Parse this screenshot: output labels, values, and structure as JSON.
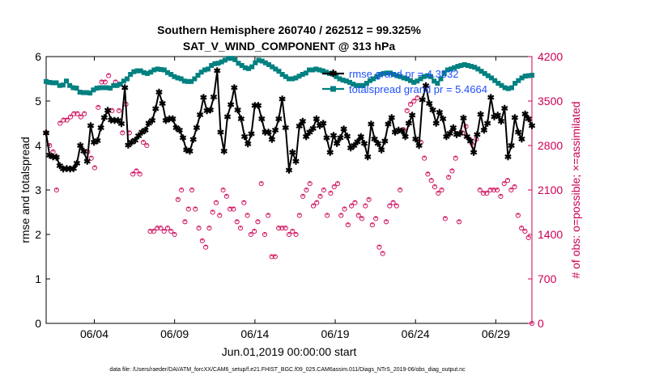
{
  "chart_data": {
    "type": "line",
    "title_line1": "Southern Hemisphere 260740 / 262512 = 99.325%",
    "title_line2": "SAT_V_WIND_COMPONENT @ 313 hPa",
    "xlabel": "Jun.01,2019 00:00:00 start",
    "ylabel_left": "rmse and totalspread",
    "ylabel_right": "# of obs: o=possible; ×=assimilated",
    "footer": "data file: /Users/raeder/DAI/ATM_forcXX/CAM6_setup/f.e21.FHIST_BGC.f09_025.CAM6assim.011/Diags_NTrS_2019-06/obs_diag_output.nc",
    "x_range_days": [
      0.5,
      30.75
    ],
    "ylim_left": [
      0,
      6
    ],
    "ylim_right": [
      0,
      4200
    ],
    "x_ticks": [
      {
        "day": 3.5,
        "label": "06/04"
      },
      {
        "day": 8.5,
        "label": "06/09"
      },
      {
        "day": 13.5,
        "label": "06/14"
      },
      {
        "day": 18.5,
        "label": "06/19"
      },
      {
        "day": 23.5,
        "label": "06/24"
      },
      {
        "day": 28.5,
        "label": "06/29"
      }
    ],
    "y_ticks_left": [
      "0",
      "1",
      "2",
      "3",
      "4",
      "5",
      "6"
    ],
    "y_ticks_right": [
      "0",
      "700",
      "1400",
      "2100",
      "2800",
      "3500",
      "4200"
    ],
    "legend": [
      "rmse grand pr = 4.3532",
      "totalspread grand pr = 5.4664"
    ],
    "colors": {
      "rmse": "#000000",
      "totalspread": "#008080",
      "obs": "#cc0055",
      "legend_text": "#1e50ff",
      "right_axis": "#cc0055"
    },
    "series": [
      {
        "key": "rmse",
        "axis": "left",
        "values": [
          4.28,
          3.78,
          3.75,
          3.74,
          3.55,
          3.47,
          3.48,
          3.47,
          3.48,
          3.6,
          4.0,
          3.87,
          3.65,
          4.45,
          4.07,
          4.11,
          4.4,
          4.63,
          4.79,
          4.57,
          4.56,
          4.56,
          4.49,
          5.3,
          4.01,
          4.07,
          4.12,
          4.22,
          4.3,
          4.35,
          4.5,
          4.56,
          4.83,
          5.2,
          4.95,
          4.56,
          4.6,
          4.6,
          4.4,
          4.35,
          4.17,
          3.9,
          3.87,
          4.14,
          4.4,
          4.69,
          5.08,
          4.78,
          4.8,
          5.09,
          5.68,
          4.3,
          3.87,
          4.65,
          4.92,
          5.3,
          4.8,
          4.6,
          4.2,
          4.04,
          4.26,
          4.9,
          4.9,
          4.6,
          4.3,
          4.3,
          4.14,
          4.35,
          4.6,
          5.05,
          4.4,
          3.45,
          3.85,
          3.65,
          4.44,
          4.55,
          4.2,
          4.3,
          4.38,
          4.6,
          4.45,
          4.5,
          4.17,
          3.85,
          4.23,
          4.05,
          4.17,
          4.37,
          4.21,
          3.95,
          4.0,
          4.08,
          4.2,
          4.05,
          3.75,
          4.48,
          4.15,
          4.05,
          3.9,
          4.1,
          4.48,
          4.63,
          4.3,
          4.35,
          4.33,
          4.2,
          4.5,
          4.68,
          4.15,
          4.0,
          5.03,
          5.35,
          4.95,
          4.8,
          4.5,
          4.75,
          4.6,
          4.2,
          4.27,
          4.4,
          4.25,
          4.27,
          4.62,
          4.2,
          4.1,
          3.85,
          4.25,
          4.7,
          4.35,
          4.5,
          5.08,
          4.65,
          4.68,
          4.55,
          4.84,
          3.75,
          4.0,
          4.63,
          4.3,
          4.15,
          4.71,
          4.6,
          4.45
        ]
      },
      {
        "key": "totalspread",
        "axis": "left",
        "values": [
          5.44,
          5.42,
          5.41,
          5.41,
          5.35,
          5.36,
          5.45,
          5.35,
          5.3,
          5.29,
          5.2,
          5.19,
          5.19,
          5.18,
          5.25,
          5.29,
          5.3,
          5.3,
          5.3,
          5.29,
          5.35,
          5.35,
          5.38,
          5.45,
          5.5,
          5.6,
          5.66,
          5.68,
          5.68,
          5.64,
          5.62,
          5.65,
          5.7,
          5.72,
          5.71,
          5.7,
          5.64,
          5.6,
          5.55,
          5.52,
          5.5,
          5.45,
          5.44,
          5.44,
          5.5,
          5.58,
          5.65,
          5.7,
          5.72,
          5.8,
          5.84,
          5.85,
          5.88,
          5.92,
          5.96,
          5.96,
          5.93,
          5.85,
          5.8,
          5.75,
          5.73,
          5.77,
          5.86,
          5.92,
          5.9,
          5.86,
          5.82,
          5.77,
          5.72,
          5.67,
          5.6,
          5.55,
          5.5,
          5.5,
          5.52,
          5.56,
          5.6,
          5.63,
          5.7,
          5.7,
          5.72,
          5.7,
          5.68,
          5.65,
          5.62,
          5.61,
          5.55,
          5.5,
          5.47,
          5.45,
          5.42,
          5.38,
          5.35,
          5.35,
          5.35,
          5.4,
          5.46,
          5.5,
          5.55,
          5.6,
          5.62,
          5.63,
          5.63,
          5.6,
          5.57,
          5.55,
          5.52,
          5.5,
          5.46,
          5.42,
          5.45,
          5.5,
          5.55,
          5.57,
          5.55,
          5.45,
          5.4,
          5.5,
          5.62,
          5.7,
          5.72,
          5.75,
          5.78,
          5.8,
          5.82,
          5.8,
          5.78,
          5.76,
          5.72,
          5.67,
          5.62,
          5.57,
          5.52,
          5.46,
          5.4,
          5.35,
          5.3,
          5.28,
          5.3,
          5.4,
          5.46,
          5.52,
          5.56,
          5.57,
          5.58
        ]
      }
    ],
    "obs_series": {
      "key": "obs",
      "axis": "right",
      "values": [
        3000,
        2800,
        2700,
        2100,
        3150,
        3200,
        3200,
        3250,
        3300,
        3300,
        3250,
        3300,
        2700,
        2600,
        2450,
        3400,
        3800,
        3800,
        3900,
        3350,
        3800,
        3350,
        3000,
        3450,
        3000,
        2350,
        2400,
        2350,
        2850,
        2800,
        1450,
        1450,
        1500,
        1500,
        1450,
        1500,
        1450,
        1400,
        1950,
        2100,
        1600,
        1800,
        2100,
        1800,
        1500,
        1300,
        1200,
        1500,
        1750,
        1900,
        1700,
        2100,
        2000,
        1800,
        1800,
        1600,
        1500,
        1900,
        1700,
        1400,
        1450,
        1600,
        2200,
        1400,
        1700,
        1050,
        1050,
        1500,
        1500,
        1500,
        1400,
        1450,
        1400,
        1700,
        2000,
        2100,
        2200,
        1850,
        1900,
        2000,
        2100,
        1700,
        2050,
        2150,
        2200,
        1700,
        1800,
        1550,
        1850,
        1900,
        1700,
        1650,
        1850,
        1950,
        1550,
        1650,
        1200,
        1100,
        1600,
        1850,
        1900,
        1850,
        2100,
        3050,
        3350,
        3450,
        3500,
        3550,
        2850,
        2600,
        2350,
        2250,
        2150,
        2050,
        2100,
        1650,
        2300,
        2400,
        2600,
        1600,
        3000,
        3100,
        2900,
        2800,
        2900,
        2100,
        2050,
        2050,
        2100,
        2100,
        2100,
        2000,
        2200,
        2250,
        2100,
        2150,
        1700,
        1500,
        1450,
        1350,
        0
      ]
    }
  }
}
